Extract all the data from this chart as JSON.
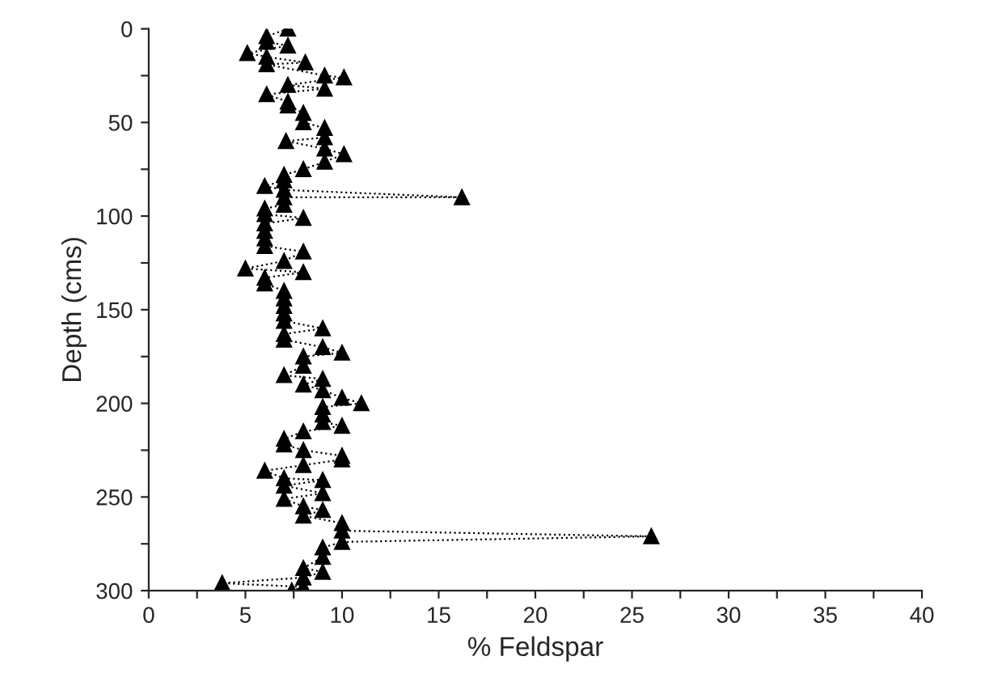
{
  "chart_data": {
    "type": "line",
    "xlabel": "% Feldspar",
    "ylabel": "Depth (cms)",
    "x": [
      7.2,
      6.1,
      6.1,
      7.2,
      5.1,
      6.1,
      8.1,
      6.1,
      9.1,
      10.1,
      7.2,
      9.1,
      6.1,
      7.2,
      7.2,
      8.0,
      8.0,
      9.1,
      9.1,
      7.1,
      9.1,
      10.1,
      9.1,
      8.0,
      7.0,
      7.0,
      6.0,
      7.0,
      16.2,
      7.0,
      7.0,
      6.0,
      6.0,
      8.0,
      6.0,
      6.0,
      6.0,
      6.0,
      8.0,
      7.0,
      5.0,
      8.0,
      6.0,
      6.0,
      7.0,
      7.0,
      7.0,
      7.0,
      7.0,
      9.0,
      7.0,
      7.0,
      9.0,
      10.0,
      8.0,
      8.0,
      7.0,
      9.0,
      8.0,
      9.0,
      10.0,
      11.0,
      9.0,
      9.0,
      9.0,
      10.0,
      8.0,
      7.0,
      7.0,
      8.0,
      10.0,
      10.0,
      8.0,
      6.0,
      7.0,
      9.0,
      7.0,
      9.0,
      7.0,
      8.0,
      9.0,
      8.0,
      10.0,
      10.0,
      26.0,
      10.0,
      9.0,
      9.0,
      8.0,
      9.0,
      8.0,
      3.8,
      8.0,
      7.4
    ],
    "series": [
      {
        "color": "#000000",
        "values": [
          0,
          4,
          7,
          9,
          13,
          15,
          18,
          19,
          25,
          26,
          30,
          32,
          35,
          39,
          41,
          45,
          50,
          53,
          58,
          60,
          64,
          67,
          71,
          75,
          78,
          81,
          84,
          86,
          90,
          90,
          94,
          96,
          99,
          101,
          104,
          108,
          112,
          116,
          119,
          124,
          128,
          130,
          133,
          136,
          140,
          144,
          148,
          152,
          156,
          160,
          163,
          166,
          170,
          173,
          175,
          180,
          185,
          187,
          190,
          193,
          197,
          200,
          202,
          206,
          210,
          212,
          215,
          219,
          222,
          225,
          228,
          230,
          233,
          236,
          240,
          241,
          244,
          248,
          251,
          255,
          257,
          260,
          264,
          268,
          271,
          274,
          277,
          282,
          288,
          290,
          293,
          296,
          298,
          300
        ]
      }
    ],
    "xlim": [
      0,
      40
    ],
    "ylim": [
      300,
      0
    ],
    "xticks": [
      0,
      {
        "value": 2.5,
        "label": null
      },
      5,
      {
        "value": 7.5,
        "label": null
      },
      10,
      {
        "value": 12.5,
        "label": null
      },
      15,
      {
        "value": 17.5,
        "label": null
      },
      20,
      {
        "value": 22.5,
        "label": null
      },
      25,
      {
        "value": 27.5,
        "label": null
      },
      30,
      {
        "value": 32.5,
        "label": null
      },
      35,
      {
        "value": 37.5,
        "label": null
      },
      40
    ],
    "yticks": [
      0,
      {
        "value": 25,
        "label": null
      },
      50,
      {
        "value": 75,
        "label": null
      },
      100,
      {
        "value": 125,
        "label": null
      },
      150,
      {
        "value": 175,
        "label": null
      },
      200,
      {
        "value": 225,
        "label": null
      },
      250,
      {
        "value": 275,
        "label": null
      },
      300
    ],
    "marker": "triangle",
    "line_style": "dotted",
    "grid": false,
    "legend": false
  }
}
